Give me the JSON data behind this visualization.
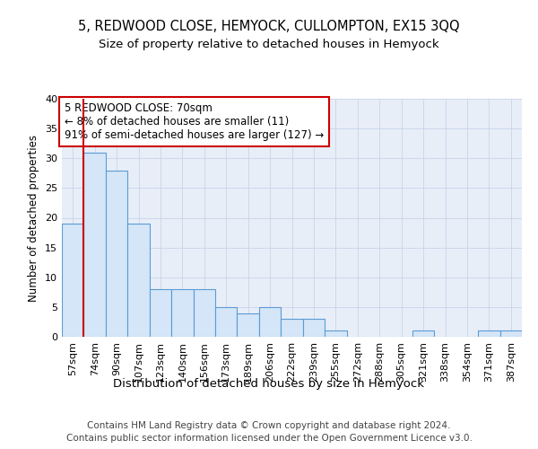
{
  "title": "5, REDWOOD CLOSE, HEMYOCK, CULLOMPTON, EX15 3QQ",
  "subtitle": "Size of property relative to detached houses in Hemyock",
  "xlabel": "Distribution of detached houses by size in Hemyock",
  "ylabel": "Number of detached properties",
  "categories": [
    "57sqm",
    "74sqm",
    "90sqm",
    "107sqm",
    "123sqm",
    "140sqm",
    "156sqm",
    "173sqm",
    "189sqm",
    "206sqm",
    "222sqm",
    "239sqm",
    "255sqm",
    "272sqm",
    "288sqm",
    "305sqm",
    "321sqm",
    "338sqm",
    "354sqm",
    "371sqm",
    "387sqm"
  ],
  "values": [
    19,
    31,
    28,
    19,
    8,
    8,
    8,
    5,
    4,
    5,
    3,
    3,
    1,
    0,
    0,
    0,
    1,
    0,
    0,
    1,
    1
  ],
  "bar_color": "#d4e6f7",
  "bar_edge_color": "#5b9bd5",
  "property_line_color": "#cc0000",
  "grid_color": "#c8d4e8",
  "background_color": "#e8eef8",
  "annotation_box_text": "5 REDWOOD CLOSE: 70sqm\n← 8% of detached houses are smaller (11)\n91% of semi-detached houses are larger (127) →",
  "annotation_box_color": "#ffffff",
  "annotation_box_edge_color": "#cc0000",
  "footer_text": "Contains HM Land Registry data © Crown copyright and database right 2024.\nContains public sector information licensed under the Open Government Licence v3.0.",
  "ylim": [
    0,
    40
  ],
  "property_bar_index": 0,
  "title_fontsize": 10.5,
  "subtitle_fontsize": 9.5,
  "xlabel_fontsize": 9.5,
  "ylabel_fontsize": 8.5,
  "tick_fontsize": 8,
  "annotation_fontsize": 8.5,
  "footer_fontsize": 7.5
}
